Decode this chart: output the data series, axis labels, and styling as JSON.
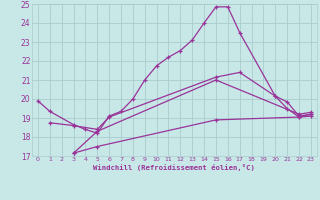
{
  "xlabel": "Windchill (Refroidissement éolien,°C)",
  "bg_color": "#c8e8e8",
  "grid_color": "#aacccc",
  "line_color": "#993399",
  "xlim": [
    -0.5,
    23.5
  ],
  "ylim": [
    17,
    25
  ],
  "yticks": [
    17,
    18,
    19,
    20,
    21,
    22,
    23,
    24,
    25
  ],
  "xticks": [
    0,
    1,
    2,
    3,
    4,
    5,
    6,
    7,
    8,
    9,
    10,
    11,
    12,
    13,
    14,
    15,
    16,
    17,
    18,
    19,
    20,
    21,
    22,
    23
  ],
  "line1_x": [
    0,
    1,
    3,
    4,
    5,
    6,
    7,
    8,
    9,
    10,
    11,
    12,
    13,
    14,
    15,
    16,
    17,
    20,
    21,
    22,
    23
  ],
  "line1_y": [
    19.9,
    19.35,
    18.65,
    18.4,
    18.2,
    19.1,
    19.35,
    20.0,
    21.0,
    21.75,
    22.2,
    22.55,
    23.1,
    24.0,
    24.85,
    24.85,
    23.5,
    20.15,
    19.5,
    19.05,
    19.2
  ],
  "line2_x": [
    1,
    3,
    5,
    6,
    15,
    17,
    20,
    21,
    22,
    23
  ],
  "line2_y": [
    18.75,
    18.6,
    18.4,
    19.05,
    21.15,
    21.4,
    20.15,
    19.85,
    19.1,
    19.2
  ],
  "line3_x": [
    3,
    5,
    15,
    22,
    23
  ],
  "line3_y": [
    17.15,
    18.3,
    21.0,
    19.2,
    19.3
  ],
  "line4_x": [
    3,
    5,
    15,
    22,
    23
  ],
  "line4_y": [
    17.15,
    17.5,
    18.9,
    19.05,
    19.1
  ]
}
